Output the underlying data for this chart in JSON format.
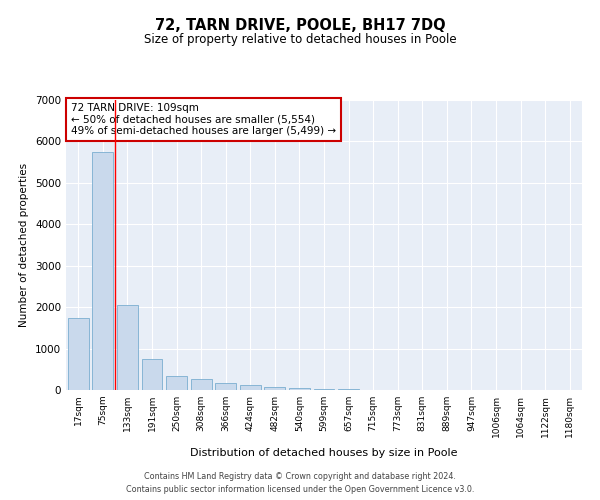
{
  "title": "72, TARN DRIVE, POOLE, BH17 7DQ",
  "subtitle": "Size of property relative to detached houses in Poole",
  "xlabel": "Distribution of detached houses by size in Poole",
  "ylabel": "Number of detached properties",
  "bar_color": "#c9d9ec",
  "bar_edge_color": "#7aaed0",
  "categories": [
    "17sqm",
    "75sqm",
    "133sqm",
    "191sqm",
    "250sqm",
    "308sqm",
    "366sqm",
    "424sqm",
    "482sqm",
    "540sqm",
    "599sqm",
    "657sqm",
    "715sqm",
    "773sqm",
    "831sqm",
    "889sqm",
    "947sqm",
    "1006sqm",
    "1064sqm",
    "1122sqm",
    "1180sqm"
  ],
  "values": [
    1750,
    5750,
    2050,
    750,
    330,
    270,
    160,
    120,
    75,
    55,
    30,
    15,
    8,
    4,
    2,
    1,
    1,
    0,
    0,
    0,
    0
  ],
  "ylim": [
    0,
    7000
  ],
  "yticks": [
    0,
    1000,
    2000,
    3000,
    4000,
    5000,
    6000,
    7000
  ],
  "property_label": "72 TARN DRIVE: 109sqm",
  "annotation_line1": "← 50% of detached houses are smaller (5,554)",
  "annotation_line2": "49% of semi-detached houses are larger (5,499) →",
  "vline_x": 1.5,
  "box_color": "#ffffff",
  "box_edge_color": "#cc0000",
  "footer1": "Contains HM Land Registry data © Crown copyright and database right 2024.",
  "footer2": "Contains public sector information licensed under the Open Government Licence v3.0.",
  "plot_bg_color": "#e8eef7"
}
